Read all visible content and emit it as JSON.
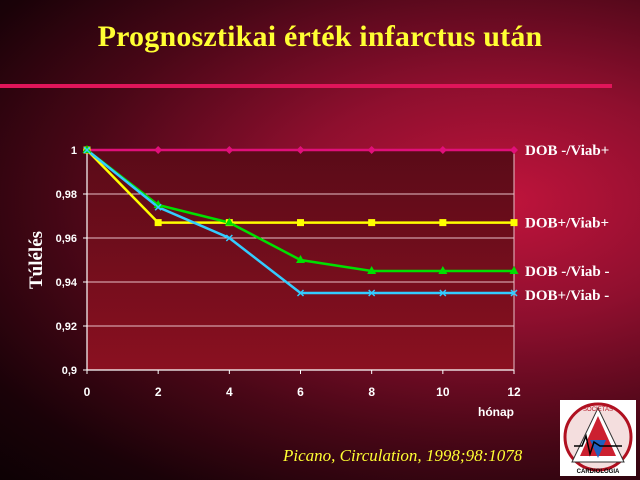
{
  "slide": {
    "title": "Prognosztikai érték infarctus után",
    "citation": "Picano, Circulation, 1998;98:1078"
  },
  "logo": {
    "top_text": "SOCIETAS",
    "bottom_text": "CARDIOLOGIA"
  },
  "colors": {
    "title": "#ffff33",
    "rule": "#e0155a",
    "text": "#ffffff"
  },
  "chart_data": {
    "type": "line",
    "title": "",
    "xlabel": "hónap",
    "ylabel": "Túlélés",
    "x": [
      0,
      2,
      4,
      6,
      8,
      10,
      12
    ],
    "xlim": [
      0,
      12
    ],
    "ylim": [
      0.9,
      1.0
    ],
    "x_ticks": [
      "0",
      "2",
      "4",
      "6",
      "8",
      "10",
      "12"
    ],
    "y_ticks": [
      "0,9",
      "0,92",
      "0,94",
      "0,96",
      "0,98",
      "1"
    ],
    "grid": true,
    "legend": "end-of-line labels (right)",
    "series": [
      {
        "name": "DOB -/Viab+",
        "values": [
          1,
          1,
          1,
          1,
          1,
          1,
          1
        ],
        "color": "#e0107a",
        "marker": "diamond"
      },
      {
        "name": "DOB+/Viab+",
        "values": [
          1,
          0.967,
          0.967,
          0.967,
          0.967,
          0.967,
          0.967
        ],
        "color": "#ffff00",
        "marker": "square"
      },
      {
        "name": "DOB -/Viab -",
        "values": [
          1,
          0.975,
          0.967,
          0.95,
          0.945,
          0.945,
          0.945
        ],
        "color": "#00e000",
        "marker": "triangle"
      },
      {
        "name": "DOB+/Viab -",
        "values": [
          1,
          0.974,
          0.96,
          0.935,
          0.935,
          0.935,
          0.935
        ],
        "color": "#33ccff",
        "marker": "x"
      }
    ]
  }
}
